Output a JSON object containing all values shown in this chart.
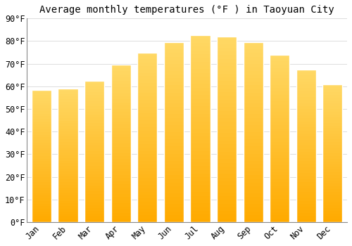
{
  "title": "Average monthly temperatures (°F ) in Taoyuan City",
  "months": [
    "Jan",
    "Feb",
    "Mar",
    "Apr",
    "May",
    "Jun",
    "Jul",
    "Aug",
    "Sep",
    "Oct",
    "Nov",
    "Dec"
  ],
  "values": [
    58.5,
    59.0,
    62.5,
    69.5,
    75.0,
    79.5,
    82.5,
    82.0,
    79.5,
    74.0,
    67.5,
    61.0
  ],
  "bar_color_bottom": "#FFAA00",
  "bar_color_top": "#FFD966",
  "bar_edge_color": "#CCCCCC",
  "background_color": "#FFFFFF",
  "grid_color": "#DDDDDD",
  "ylim": [
    0,
    90
  ],
  "yticks": [
    0,
    10,
    20,
    30,
    40,
    50,
    60,
    70,
    80,
    90
  ],
  "title_fontsize": 10,
  "tick_fontsize": 8.5,
  "bar_width": 0.75
}
